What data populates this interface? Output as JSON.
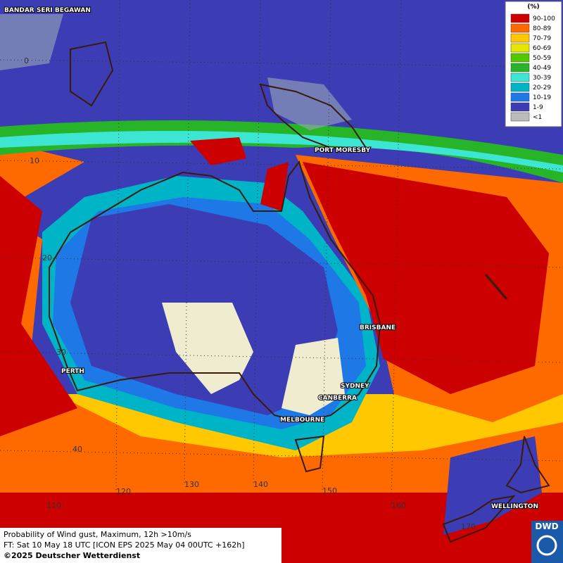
{
  "legend": {
    "title": "(%)",
    "items": [
      {
        "label": "90-100",
        "color": "#cc0000"
      },
      {
        "label": "80-89",
        "color": "#ff6a00"
      },
      {
        "label": "70-79",
        "color": "#ffc800"
      },
      {
        "label": "60-69",
        "color": "#e6e600"
      },
      {
        "label": "50-59",
        "color": "#55c800"
      },
      {
        "label": "40-49",
        "color": "#28b428"
      },
      {
        "label": "30-39",
        "color": "#3ce6d2"
      },
      {
        "label": "20-29",
        "color": "#00b4c8"
      },
      {
        "label": "10-19",
        "color": "#1e78e6"
      },
      {
        "label": "1-9",
        "color": "#3c3cb4"
      },
      {
        "label": "<1",
        "color": "#bbbbbb"
      }
    ]
  },
  "cities": [
    "BANDAR SERI BEGAWAN",
    "PORT MORESBY",
    "BRISBANE",
    "PERTH",
    "SYDNEY",
    "CANBERRA",
    "MELBOURNE",
    "WELLINGTON"
  ],
  "grid_labels": [
    "0",
    "10",
    "20",
    "30",
    "40",
    "110",
    "120",
    "130",
    "140",
    "150",
    "160",
    "170"
  ],
  "footer": [
    "Probability of Wind gust, Maximum, 12h >10m/s",
    "FT: Sat 10 May 18 UTC [ICON EPS 2025 May 04 00UTC +162h]",
    "©2025 Deutscher Wetterdienst"
  ],
  "logo": "DWD"
}
